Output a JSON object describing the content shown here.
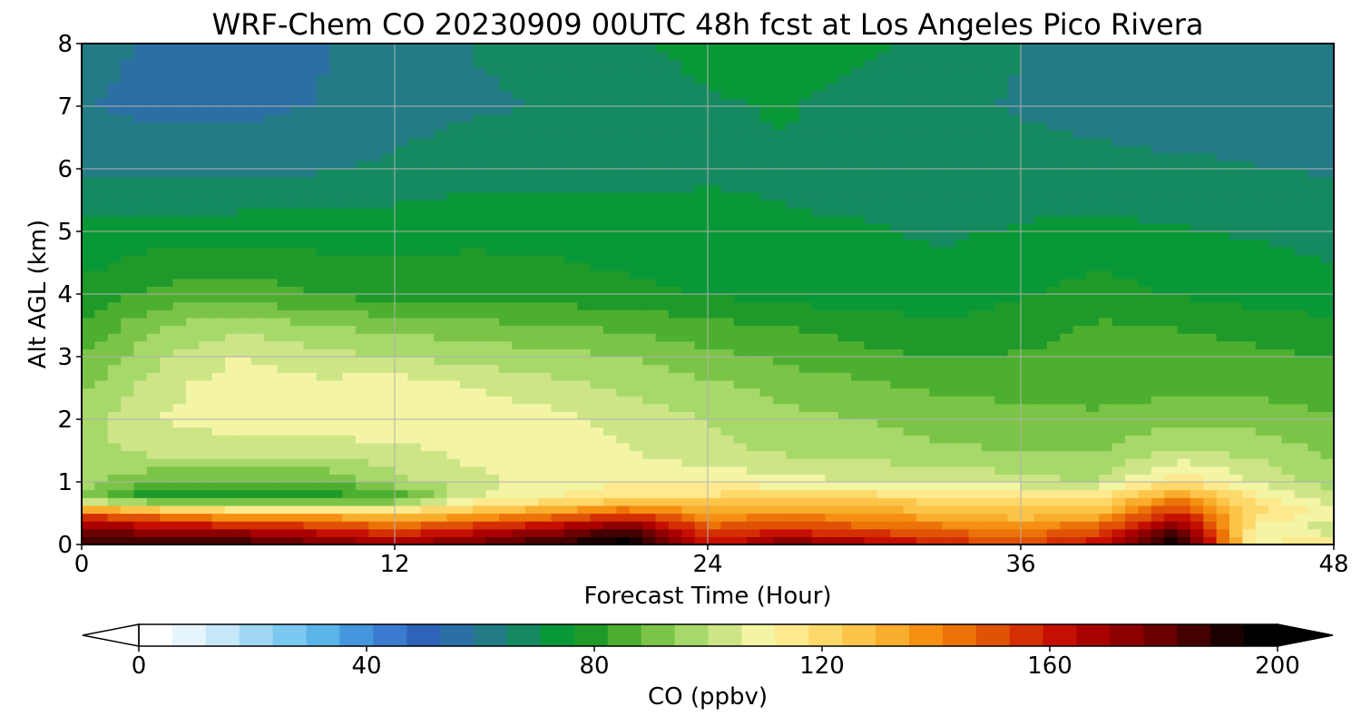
{
  "chart_data": {
    "type": "heatmap",
    "title": "WRF-Chem CO  20230909 00UTC 48h fcst at Los Angeles Pico Rivera",
    "xlabel": "Forecast Time (Hour)",
    "ylabel": "Alt AGL (km)",
    "xlim": [
      0,
      48
    ],
    "ylim": [
      0,
      8
    ],
    "x_ticks": [
      0,
      12,
      24,
      36,
      48
    ],
    "y_ticks": [
      0,
      1,
      2,
      3,
      4,
      5,
      6,
      7,
      8
    ],
    "grid": true,
    "x": [
      0,
      3,
      6,
      9,
      12,
      15,
      18,
      21,
      24,
      27,
      30,
      33,
      36,
      39,
      42,
      45,
      48
    ],
    "y": [
      0,
      0.25,
      0.5,
      0.75,
      1,
      1.5,
      2,
      2.5,
      3,
      3.5,
      4,
      5,
      6,
      7,
      8
    ],
    "z": [
      [
        190,
        190,
        190,
        180,
        170,
        180,
        190,
        200,
        160,
        180,
        170,
        160,
        150,
        165,
        200,
        110,
        120
      ],
      [
        175,
        170,
        165,
        160,
        150,
        160,
        170,
        185,
        150,
        155,
        150,
        145,
        140,
        150,
        180,
        110,
        100
      ],
      [
        150,
        140,
        130,
        130,
        125,
        130,
        140,
        150,
        135,
        140,
        135,
        130,
        125,
        130,
        160,
        120,
        110
      ],
      [
        90,
        75,
        78,
        78,
        82,
        105,
        112,
        118,
        120,
        122,
        122,
        120,
        118,
        118,
        140,
        115,
        100
      ],
      [
        97,
        88,
        88,
        86,
        98,
        104,
        108,
        112,
        110,
        108,
        106,
        106,
        102,
        100,
        118,
        105,
        97
      ],
      [
        98,
        102,
        104,
        104,
        104,
        108,
        110,
        106,
        102,
        99,
        97,
        95,
        94,
        94,
        100,
        98,
        93
      ],
      [
        97,
        106,
        108,
        108,
        110,
        110,
        108,
        103,
        100,
        96,
        94,
        92,
        91,
        90,
        92,
        92,
        89
      ],
      [
        93,
        104,
        110,
        108,
        110,
        106,
        102,
        99,
        96,
        92,
        90,
        87,
        86,
        85,
        87,
        87,
        84
      ],
      [
        88,
        99,
        106,
        102,
        100,
        98,
        96,
        94,
        90,
        87,
        84,
        82,
        83,
        84,
        85,
        84,
        82
      ],
      [
        83,
        94,
        98,
        94,
        92,
        90,
        88,
        87,
        84,
        82,
        80,
        78,
        80,
        83,
        82,
        80,
        78
      ],
      [
        78,
        84,
        86,
        82,
        80,
        80,
        80,
        78,
        76,
        74,
        73,
        72,
        76,
        79,
        76,
        74,
        72
      ],
      [
        72,
        74,
        74,
        74,
        74,
        75,
        74,
        73,
        72,
        71,
        71,
        70,
        71,
        72,
        71,
        70,
        69
      ],
      [
        64,
        63,
        63,
        64,
        66,
        68,
        68,
        69,
        70,
        70,
        69,
        68,
        68,
        67,
        66,
        65,
        64
      ],
      [
        59,
        57,
        57,
        59,
        62,
        64,
        65,
        68,
        70,
        71,
        68,
        66,
        64,
        62,
        61,
        61,
        62
      ],
      [
        61,
        58,
        57,
        58,
        62,
        65,
        66,
        70,
        72,
        74,
        72,
        69,
        65,
        62,
        60,
        61,
        62
      ]
    ],
    "colorbar": {
      "label": "CO  (ppbv)",
      "min": 0,
      "max": 200,
      "ticks": [
        0,
        40,
        80,
        120,
        160,
        200
      ],
      "extend": "both",
      "colors": [
        "#ffffff",
        "#e6f4fc",
        "#c5e7f8",
        "#a0d8f4",
        "#7bc9f0",
        "#5ab4e8",
        "#4497dc",
        "#3a7bd0",
        "#2f63b8",
        "#2b6fa4",
        "#237b86",
        "#158a60",
        "#089837",
        "#1f9a2a",
        "#4caf2f",
        "#7bc447",
        "#a6d96a",
        "#cde587",
        "#f3f5a5",
        "#fde98e",
        "#fdd86a",
        "#fcc54a",
        "#f9ad2c",
        "#f59012",
        "#ec7308",
        "#e05206",
        "#d32f03",
        "#c40f02",
        "#a90000",
        "#8c0000",
        "#6a0000",
        "#450000",
        "#1a0000",
        "#000000"
      ]
    }
  }
}
